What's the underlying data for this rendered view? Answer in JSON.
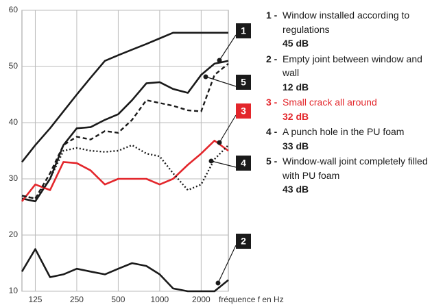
{
  "chart_data": {
    "type": "line",
    "x": [
      100,
      125,
      160,
      200,
      250,
      315,
      400,
      500,
      630,
      800,
      1000,
      1250,
      1600,
      2000,
      2500,
      3150
    ],
    "xlabel": "fréquence f en Hz",
    "xscale": "log",
    "xlim": [
      100,
      3150
    ],
    "xticks": [
      125,
      250,
      500,
      1000,
      2000
    ],
    "ylim": [
      10,
      60
    ],
    "yticks": [
      10,
      20,
      30,
      40,
      50,
      60
    ],
    "grid": true,
    "series": [
      {
        "color": "#1a1a1a",
        "dash": "solid",
        "values": [
          33,
          36,
          39,
          42,
          45,
          48,
          51,
          52,
          53,
          54,
          55,
          56,
          56,
          56,
          56,
          56
        ]
      },
      {
        "label": "1",
        "color": "#1a1a1a",
        "dash": "solid",
        "values": [
          26.5,
          26,
          30,
          36,
          39,
          39.2,
          40.5,
          41.5,
          44,
          47,
          47.2,
          46,
          45.3,
          48.5,
          50.5,
          51
        ]
      },
      {
        "label": "2",
        "color": "#1a1a1a",
        "dash": "solid",
        "values": [
          13.5,
          17.5,
          12.5,
          13,
          14,
          13.5,
          13,
          14,
          15,
          14.5,
          13,
          10.5,
          10,
          10,
          10,
          12
        ]
      },
      {
        "label": "3",
        "color": "#e3262b",
        "dash": "solid",
        "values": [
          26,
          29,
          28,
          33,
          32.8,
          31.5,
          29,
          30,
          30,
          30,
          29,
          30,
          32.5,
          34.5,
          36.8,
          35
        ]
      },
      {
        "label": "4",
        "color": "#1a1a1a",
        "dash": "dotted",
        "values": [
          27,
          26.5,
          30,
          35,
          35.5,
          35,
          34.8,
          35,
          36,
          34.5,
          34,
          31,
          28,
          29,
          33.5,
          36
        ]
      },
      {
        "label": "5",
        "color": "#1a1a1a",
        "dash": "dashed",
        "values": [
          27,
          26.5,
          31,
          36,
          37.5,
          37,
          38.5,
          38.2,
          40.5,
          44,
          43.5,
          43,
          42.2,
          42,
          48.5,
          50.5
        ]
      }
    ],
    "legend": [
      {
        "number": "1 -",
        "text": "Window installed according to regulations",
        "rating": "45 dB",
        "color": "#1a1a1a"
      },
      {
        "number": "2 -",
        "text": "Empty joint between window and wall",
        "rating": "12 dB",
        "color": "#1a1a1a"
      },
      {
        "number": "3 -",
        "text": "Small crack all around",
        "rating": "32 dB",
        "color": "#e3262b"
      },
      {
        "number": "4 -",
        "text": "A punch hole in the PU foam",
        "rating": "33 dB",
        "color": "#1a1a1a"
      },
      {
        "number": "5 -",
        "text": "Window-wall joint completely filled with PU foam",
        "rating": "43 dB",
        "color": "#1a1a1a"
      }
    ]
  }
}
